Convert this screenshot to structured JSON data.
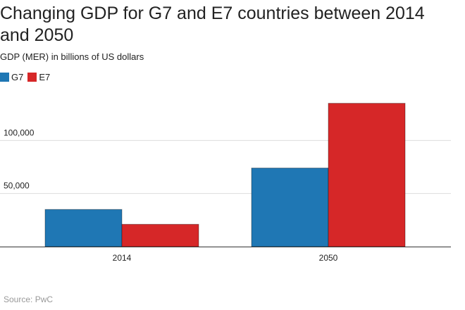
{
  "colors": {
    "g7": "#1f77b4",
    "e7": "#d62728",
    "grid": "#dddddd",
    "axis": "#333333",
    "text": "#222222",
    "source": "#999999"
  },
  "source": "Source: PwC",
  "chart_data": {
    "type": "bar",
    "title": "Changing GDP for G7 and E7 countries between 2014 and 2050",
    "subtitle": "GDP (MER) in billions of US dollars",
    "xlabel": "",
    "ylabel": "",
    "categories": [
      "2014",
      "2050"
    ],
    "series": [
      {
        "name": "G7",
        "values": [
          35000,
          74000
        ]
      },
      {
        "name": "E7",
        "values": [
          21000,
          135000
        ]
      }
    ],
    "ylim": [
      0,
      150000
    ],
    "yticks": [
      50000,
      100000
    ],
    "ytick_labels": [
      "50,000",
      "100,000"
    ],
    "grid": true,
    "legend": "top-left"
  }
}
